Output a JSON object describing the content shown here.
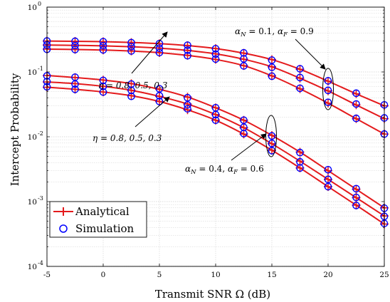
{
  "chart_data": {
    "type": "line",
    "xlabel": "Transmit SNR Ω (dB)",
    "ylabel": "Intercept Probability",
    "xlim": [
      -5,
      25
    ],
    "ylim": [
      0.0001,
      1
    ],
    "yscale": "log",
    "grid": true,
    "legend_position": "bottom-left",
    "x_ticks": [
      "-5",
      "0",
      "5",
      "10",
      "15",
      "20",
      "25"
    ],
    "y_ticks": [
      {
        "base": "10",
        "exp": "-4",
        "value": 0.0001
      },
      {
        "base": "10",
        "exp": "-3",
        "value": 0.001
      },
      {
        "base": "10",
        "exp": "-2",
        "value": 0.01
      },
      {
        "base": "10",
        "exp": "-1",
        "value": 0.1
      },
      {
        "base": "10",
        "exp": "0",
        "value": 1
      }
    ],
    "legend": [
      {
        "label": "Analytical",
        "marker": "plus"
      },
      {
        "label": "Simulation",
        "marker": "circle"
      }
    ],
    "analytical_x": [
      -5,
      -2.5,
      0,
      2.5,
      5,
      7.5,
      10,
      12.5,
      15,
      17.5,
      20,
      22.5,
      25
    ],
    "simulation_x": [
      -5,
      -2.5,
      0,
      2.5,
      5,
      7.5,
      10,
      12.5,
      15,
      17.5,
      20,
      22.5,
      25
    ],
    "series": [
      {
        "group": "high",
        "values": [
          0.3,
          0.297,
          0.293,
          0.285,
          0.273,
          0.255,
          0.23,
          0.195,
          0.155,
          0.11,
          0.072,
          0.046,
          0.03
        ],
        "simulation": [
          0.3,
          0.297,
          0.293,
          0.283,
          0.273,
          0.258,
          0.228,
          0.197,
          0.152,
          0.112,
          0.073,
          0.047,
          0.031
        ]
      },
      {
        "group": "high",
        "values": [
          0.26,
          0.257,
          0.253,
          0.245,
          0.233,
          0.215,
          0.19,
          0.157,
          0.12,
          0.08,
          0.051,
          0.031,
          0.019
        ],
        "simulation": [
          0.26,
          0.256,
          0.254,
          0.246,
          0.232,
          0.217,
          0.188,
          0.159,
          0.118,
          0.082,
          0.052,
          0.032,
          0.0195
        ]
      },
      {
        "group": "high",
        "values": [
          0.225,
          0.222,
          0.218,
          0.21,
          0.198,
          0.18,
          0.156,
          0.125,
          0.087,
          0.055,
          0.033,
          0.019,
          0.011
        ],
        "simulation": [
          0.223,
          0.222,
          0.219,
          0.211,
          0.199,
          0.178,
          0.158,
          0.124,
          0.086,
          0.056,
          0.034,
          0.0192,
          0.011
        ]
      },
      {
        "group": "low",
        "values": [
          0.088,
          0.082,
          0.075,
          0.066,
          0.054,
          0.041,
          0.028,
          0.018,
          0.0105,
          0.0058,
          0.003,
          0.00155,
          0.0008
        ],
        "simulation": [
          0.087,
          0.083,
          0.074,
          0.065,
          0.055,
          0.04,
          0.028,
          0.018,
          0.0103,
          0.0057,
          0.0031,
          0.00158,
          0.00079
        ]
      },
      {
        "group": "low",
        "values": [
          0.07,
          0.066,
          0.06,
          0.052,
          0.042,
          0.032,
          0.022,
          0.0138,
          0.0078,
          0.0042,
          0.0022,
          0.00115,
          0.0006
        ],
        "simulation": [
          0.071,
          0.065,
          0.06,
          0.052,
          0.043,
          0.031,
          0.022,
          0.014,
          0.0079,
          0.0041,
          0.0022,
          0.00116,
          0.00059
        ]
      },
      {
        "group": "low",
        "values": [
          0.058,
          0.054,
          0.049,
          0.043,
          0.035,
          0.026,
          0.018,
          0.011,
          0.0062,
          0.0033,
          0.0017,
          0.00088,
          0.00045
        ],
        "simulation": [
          0.059,
          0.054,
          0.049,
          0.042,
          0.035,
          0.027,
          0.018,
          0.0112,
          0.0061,
          0.0033,
          0.0017,
          0.00087,
          0.00046
        ]
      }
    ],
    "annotations": {
      "eta_high": "η = 0.8, 0.5, 0.3",
      "eta_low": "η = 0.8, 0.5, 0.3",
      "alpha_high": "αₙ = 0.1, α_F = 0.9",
      "alpha_low": "αₙ = 0.4, α_F = 0.6",
      "alpha_high_parts": {
        "a_sym": "α",
        "a_n_sub": "N",
        "a_n_val": " = 0.1, ",
        "a_f_sub": "F",
        "a_f_val": " = 0.9"
      },
      "alpha_low_parts": {
        "a_sym": "α",
        "a_n_sub": "N",
        "a_n_val": " = 0.4, ",
        "a_f_sub": "F",
        "a_f_val": " = 0.6"
      }
    },
    "colors": {
      "series": "#e41a1c",
      "markers_simulation": "#0000ff",
      "grid": "#d0d0d0",
      "axis": "#000000"
    }
  }
}
